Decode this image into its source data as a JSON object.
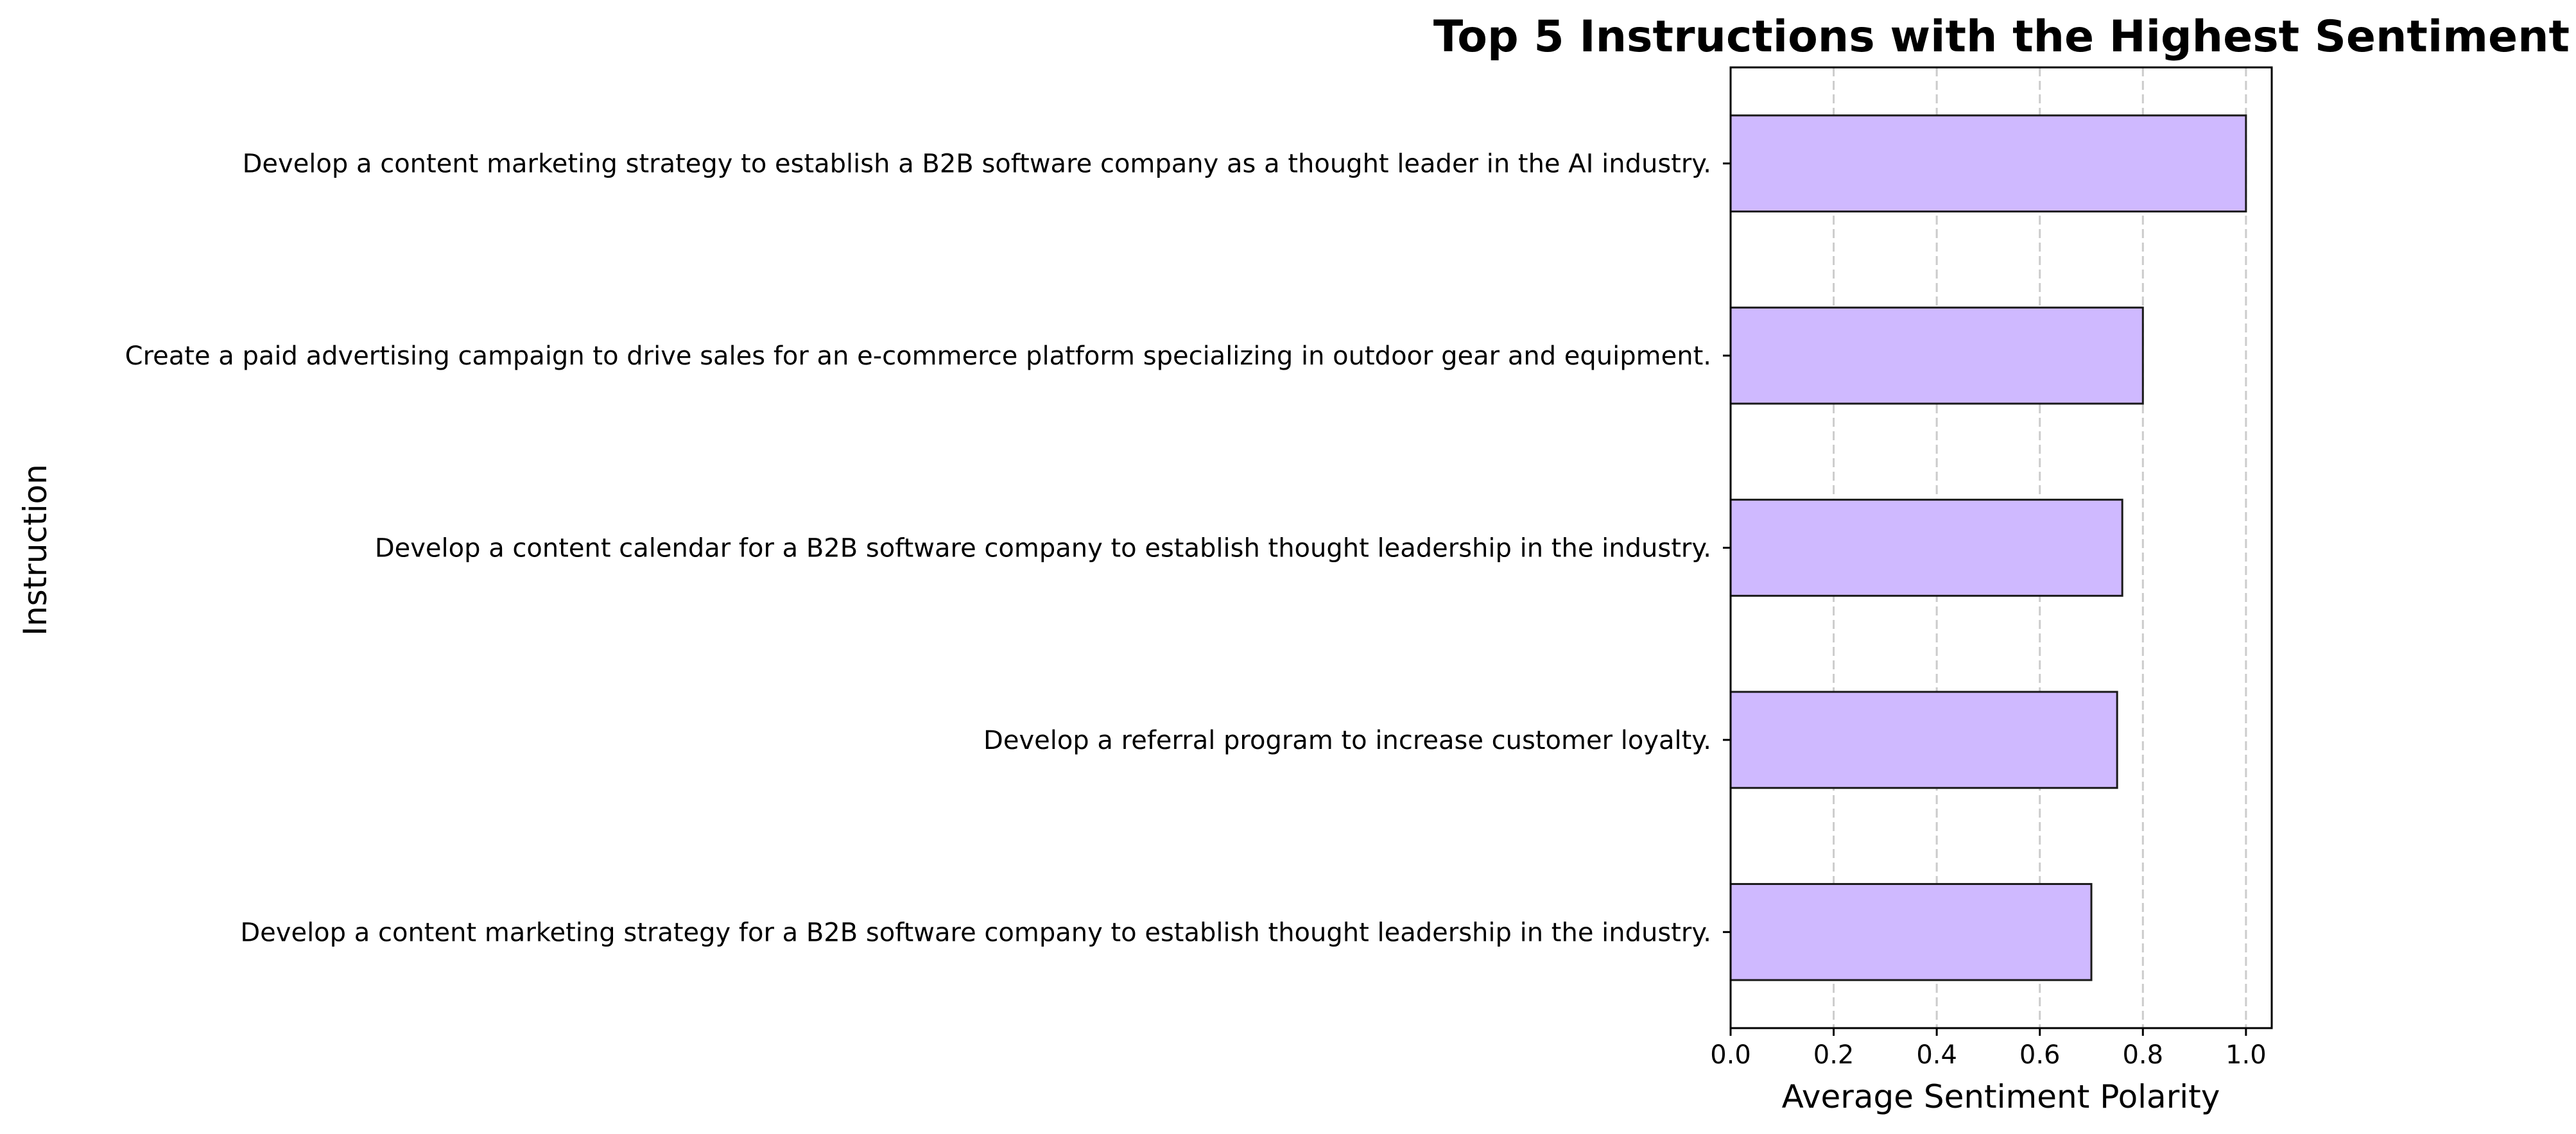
{
  "chart_data": {
    "type": "bar",
    "orientation": "horizontal",
    "title": "Top 5 Instructions with the Highest Sentiment",
    "xlabel": "Average Sentiment Polarity",
    "ylabel": "Instruction",
    "xlim": [
      0,
      1.05
    ],
    "x_ticks": [
      "0.0",
      "0.2",
      "0.4",
      "0.6",
      "0.8",
      "1.0"
    ],
    "x_tick_values": [
      0,
      0.2,
      0.4,
      0.6,
      0.8,
      1.0
    ],
    "grid": "vertical dashed",
    "categories": [
      "Develop a content marketing strategy to establish a B2B software company as a thought leader in the AI industry.",
      "Create a paid advertising campaign to drive sales for an e-commerce platform specializing in outdoor gear and equipment.",
      "Develop a content calendar for a B2B software company to establish thought leadership in the industry.",
      "Develop a referral program to increase customer loyalty.",
      "Develop a content marketing strategy for a B2B software company to establish thought leadership in the industry."
    ],
    "values": [
      1.0,
      0.8,
      0.76,
      0.75,
      0.7
    ],
    "colors": {
      "bar_fill": "#cfb9ff",
      "bar_edge": "#1a1a1a",
      "grid": "#cccccc",
      "axis": "#000000"
    }
  }
}
